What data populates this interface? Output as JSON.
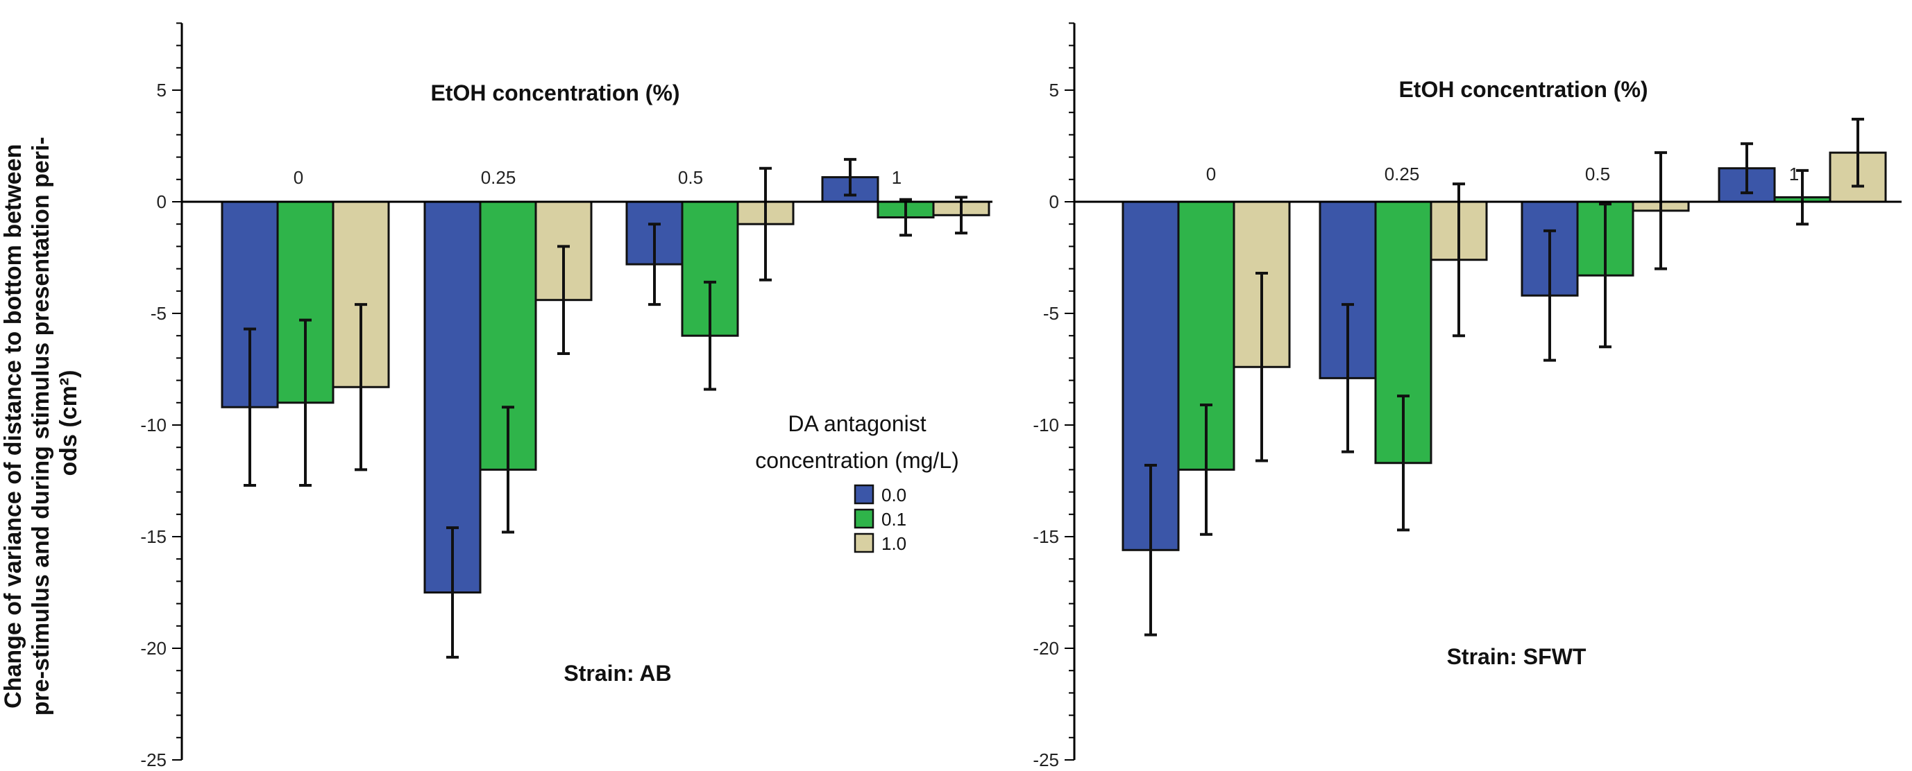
{
  "chart_data": [
    {
      "type": "bar",
      "title": "EtOH concentration (%)",
      "annotation": "Strain: AB",
      "categories": [
        "0",
        "0.25",
        "0.5",
        "1"
      ],
      "ylabel": "Change of variance of distance to bottom between pre-stimulus and during stimulus presentation peri-ods (cm²)",
      "ylim": [
        -25,
        8
      ],
      "yticks": [
        5,
        0,
        -5,
        -10,
        -15,
        -20,
        -25
      ],
      "series": [
        {
          "name": "0.0",
          "color": "#3b56a8",
          "values": [
            -9.2,
            -17.5,
            -2.8,
            1.1
          ],
          "errors": [
            3.5,
            2.9,
            1.8,
            0.8
          ]
        },
        {
          "name": "0.1",
          "color": "#2fb44a",
          "values": [
            -9.0,
            -12.0,
            -6.0,
            -0.7
          ],
          "errors": [
            3.7,
            2.8,
            2.4,
            0.8
          ]
        },
        {
          "name": "1.0",
          "color": "#d8d0a2",
          "values": [
            -8.3,
            -4.4,
            -1.0,
            -0.6
          ],
          "errors": [
            3.7,
            2.4,
            2.5,
            0.8
          ]
        }
      ],
      "legend": {
        "title_line1": "DA antagonist",
        "title_line2": "concentration (mg/L)",
        "position": "center-right"
      }
    },
    {
      "type": "bar",
      "title": "EtOH concentration (%)",
      "annotation": "Strain: SFWT",
      "categories": [
        "0",
        "0.25",
        "0.5",
        "1"
      ],
      "ylim": [
        -25,
        8
      ],
      "yticks": [
        5,
        0,
        -5,
        -10,
        -15,
        -20,
        -25
      ],
      "series": [
        {
          "name": "0.0",
          "color": "#3b56a8",
          "values": [
            -15.6,
            -7.9,
            -4.2,
            1.5
          ],
          "errors": [
            3.8,
            3.3,
            2.9,
            1.1
          ]
        },
        {
          "name": "0.1",
          "color": "#2fb44a",
          "values": [
            -12.0,
            -11.7,
            -3.3,
            0.2
          ],
          "errors": [
            2.9,
            3.0,
            3.2,
            1.2
          ]
        },
        {
          "name": "1.0",
          "color": "#d8d0a2",
          "values": [
            -7.4,
            -2.6,
            -0.4,
            2.2
          ],
          "errors": [
            4.2,
            3.4,
            2.6,
            1.5
          ]
        }
      ]
    }
  ]
}
